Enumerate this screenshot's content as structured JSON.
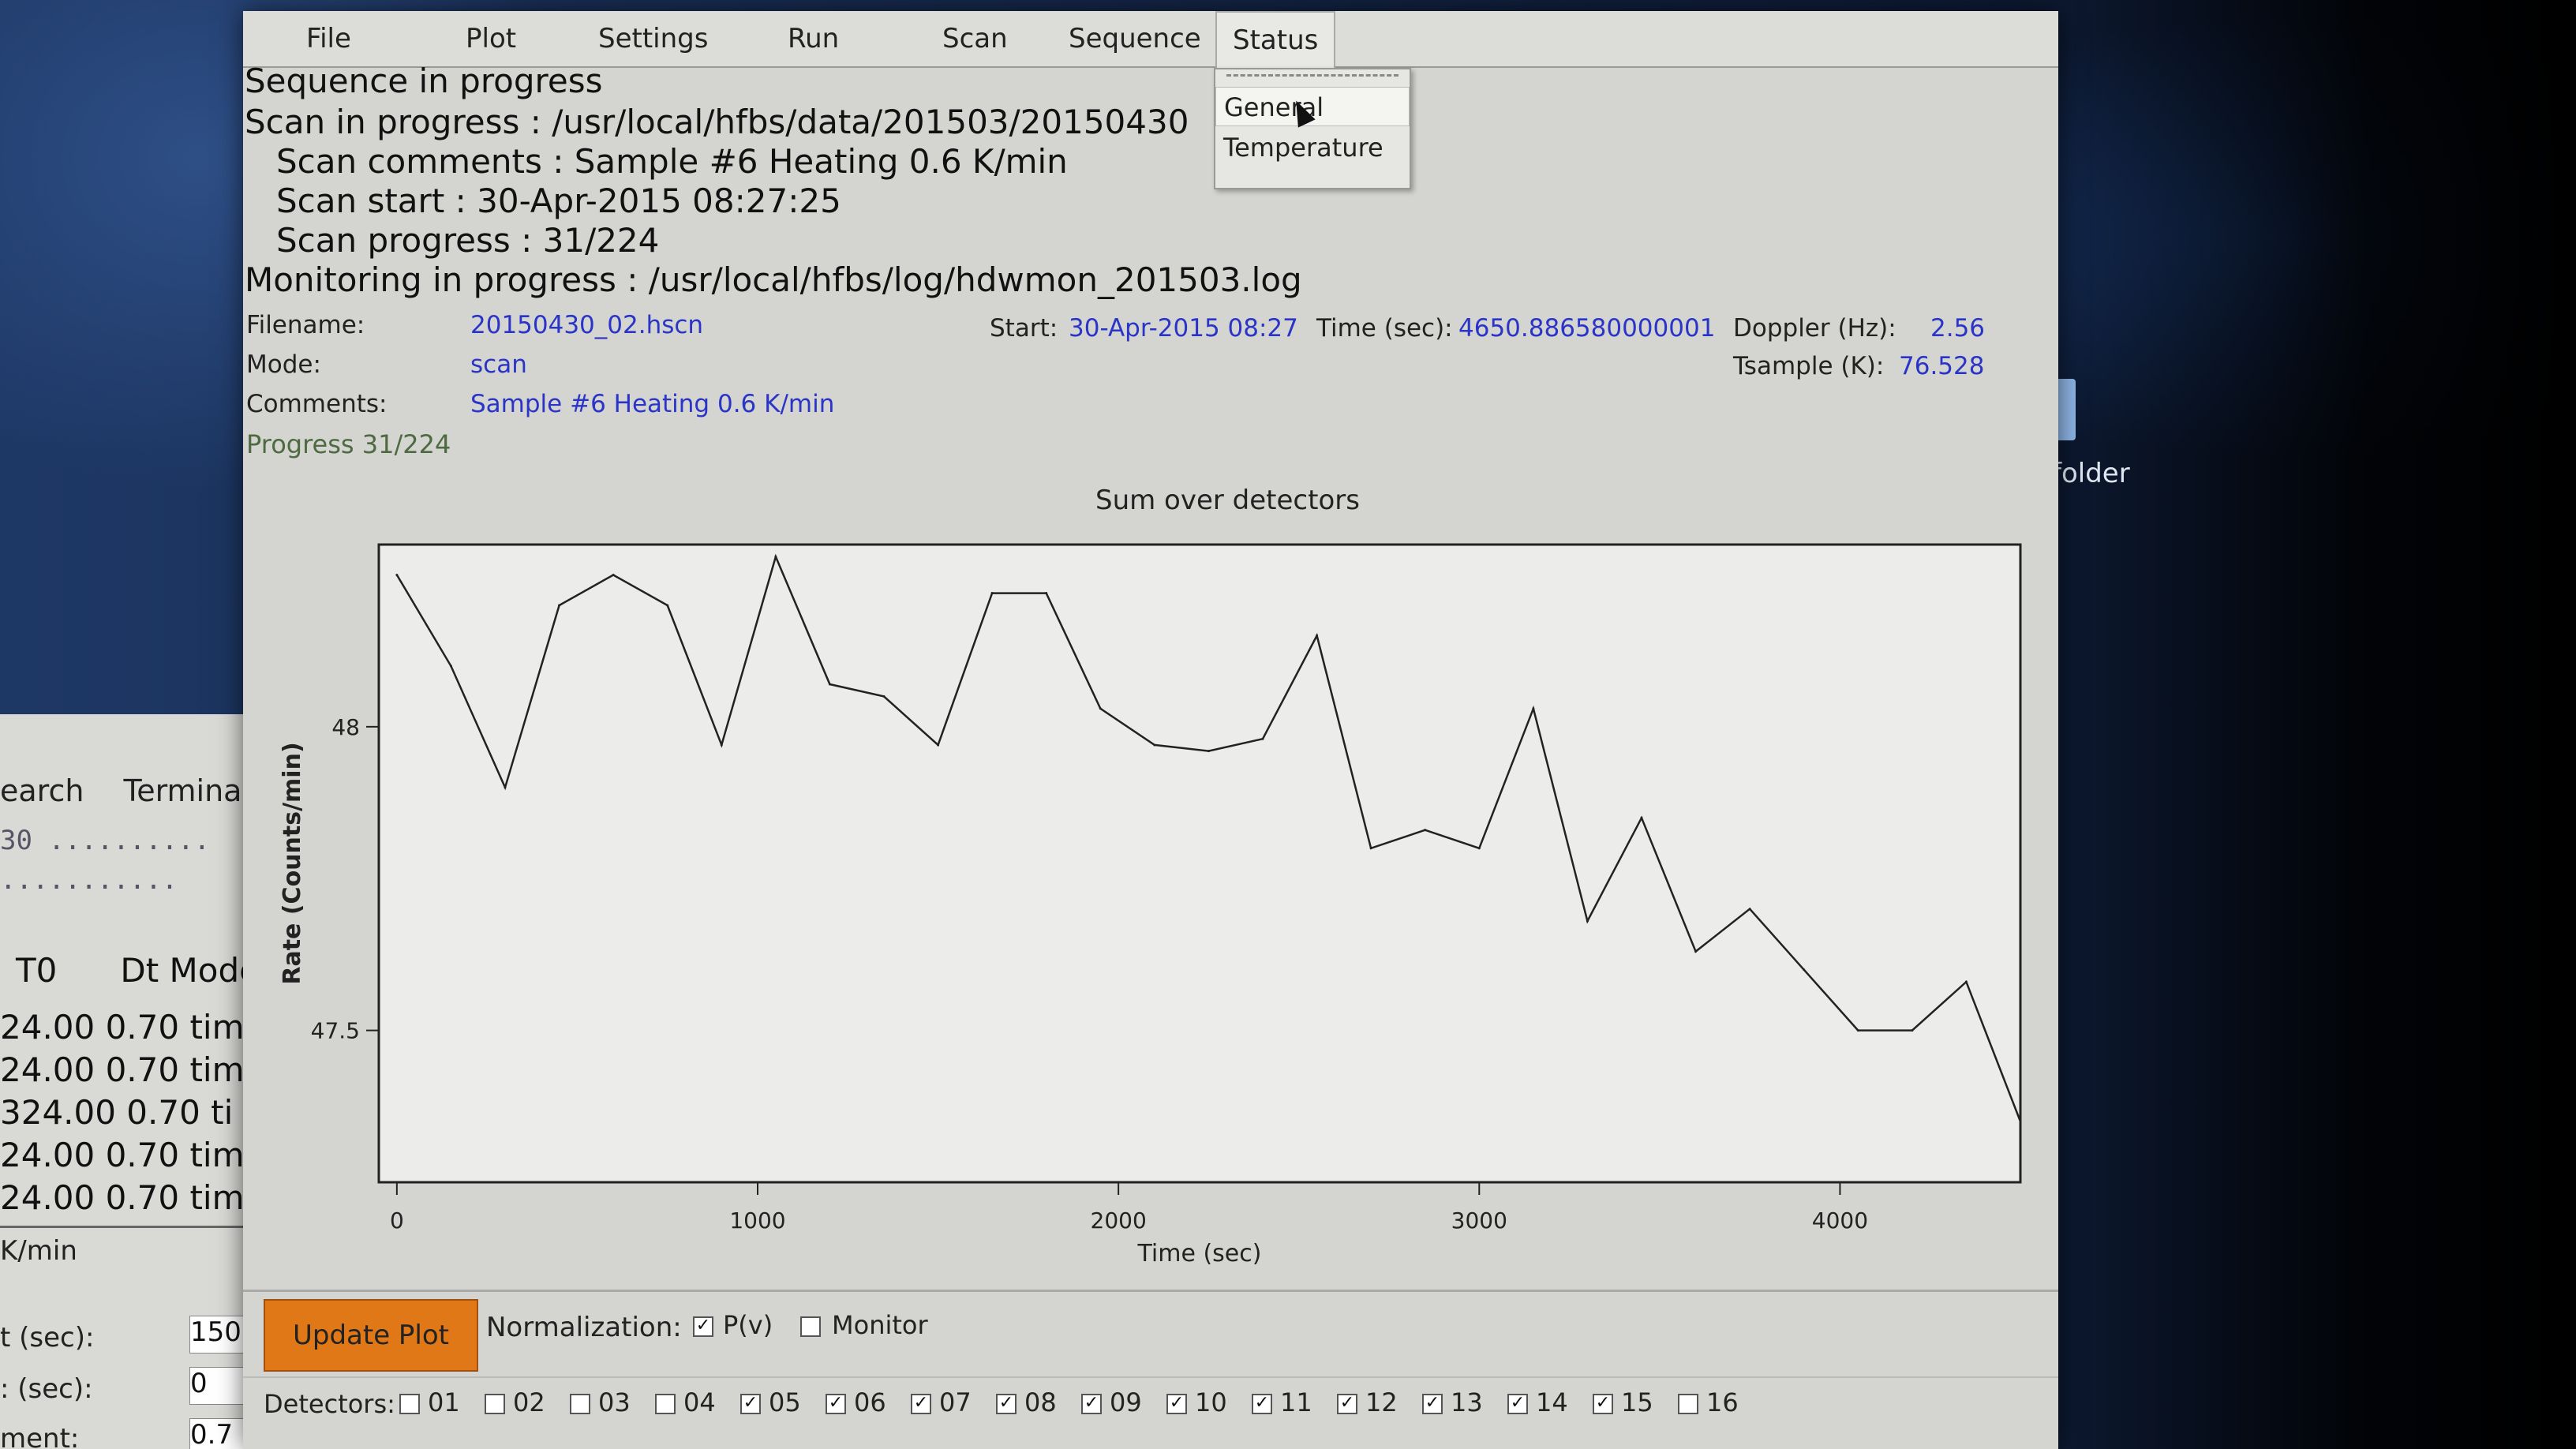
{
  "desktop": {
    "folder_label": "folder"
  },
  "background_window": {
    "menu": [
      "earch",
      "Terminal"
    ],
    "prompt": "30 ..........",
    "dots": "...........",
    "table_headers": [
      "T0",
      "Dt Mode"
    ],
    "rows": [
      "24.00  0.70 tim",
      "24.00  0.70 tim",
      "324.00  0.70 ti",
      "24.00  0.70 tim",
      "24.00  0.70 tim"
    ],
    "unit_line": "K/min",
    "fields": [
      {
        "label": "t (sec):",
        "value": "150"
      },
      {
        "label": ": (sec):",
        "value": "0"
      },
      {
        "label": "ment:",
        "value": "0.7"
      }
    ]
  },
  "window": {
    "menu": [
      "File",
      "Plot",
      "Settings",
      "Run",
      "Scan",
      "Sequence",
      "Status"
    ],
    "status_menu": {
      "items": [
        "General",
        "Temperature"
      ]
    },
    "status_lines": {
      "sequence": "Sequence in progress",
      "scan": "Scan in progress   : /usr/local/hfbs/data/201503/20150430",
      "comments": "Scan comments   : Sample #6 Heating 0.6 K/min",
      "start": "Scan start        : 30-Apr-2015 08:27:25",
      "progress": "Scan progress    : 31/224",
      "monitoring": "Monitoring in progress : /usr/local/hfbs/log/hdwmon_201503.log"
    },
    "info": {
      "filename_label": "Filename:",
      "filename": "20150430_02.hscn",
      "mode_label": "Mode:",
      "mode": "scan",
      "comments_label": "Comments:",
      "comments": "Sample #6 Heating 0.6 K/min",
      "start_label": "Start:",
      "start": "30-Apr-2015 08:27",
      "time_label": "Time (sec):",
      "time": "4650.886580000001",
      "doppler_label": "Doppler (Hz):",
      "doppler": "2.56",
      "tsample_label": "Tsample (K):",
      "tsample": "76.528",
      "progress": "Progress 31/224"
    },
    "controls": {
      "update_button": "Update Plot",
      "normalization_label": "Normalization:",
      "pv_label": "P(v)",
      "pv_checked": true,
      "monitor_label": "Monitor",
      "monitor_checked": false,
      "detectors_label": "Detectors:",
      "detectors": [
        {
          "label": "01",
          "checked": false
        },
        {
          "label": "02",
          "checked": false
        },
        {
          "label": "03",
          "checked": false
        },
        {
          "label": "04",
          "checked": false
        },
        {
          "label": "05",
          "checked": true
        },
        {
          "label": "06",
          "checked": true
        },
        {
          "label": "07",
          "checked": true
        },
        {
          "label": "08",
          "checked": true
        },
        {
          "label": "09",
          "checked": true
        },
        {
          "label": "10",
          "checked": true
        },
        {
          "label": "11",
          "checked": true
        },
        {
          "label": "12",
          "checked": true
        },
        {
          "label": "13",
          "checked": true
        },
        {
          "label": "14",
          "checked": true
        },
        {
          "label": "15",
          "checked": true
        },
        {
          "label": "16",
          "checked": false
        }
      ]
    }
  },
  "chart_data": {
    "type": "line",
    "title": "Sum over detectors",
    "xlabel": "Time (sec)",
    "ylabel": "Rate (Counts/min)",
    "xlim": [
      -50,
      4500
    ],
    "ylim": [
      47.25,
      48.3
    ],
    "xticks": [
      0,
      1000,
      2000,
      3000,
      4000
    ],
    "yticks": [
      47.5,
      48
    ],
    "series": [
      {
        "x": [
          0,
          150,
          300,
          450,
          600,
          750,
          900,
          1050,
          1200,
          1350,
          1500,
          1650,
          1800,
          1950,
          2100,
          2250,
          2400,
          2550,
          2700,
          2850,
          3000,
          3150,
          3300,
          3450,
          3600,
          3750,
          3900,
          4050,
          4200,
          4350,
          4500
        ],
        "y": [
          48.25,
          48.1,
          47.9,
          48.2,
          48.25,
          48.2,
          47.97,
          48.28,
          48.07,
          48.05,
          47.97,
          48.22,
          48.22,
          48.03,
          47.97,
          47.96,
          47.98,
          48.15,
          47.8,
          47.83,
          47.8,
          48.03,
          47.68,
          47.85,
          47.63,
          47.7,
          47.6,
          47.5,
          47.5,
          47.58,
          47.35
        ]
      }
    ]
  }
}
